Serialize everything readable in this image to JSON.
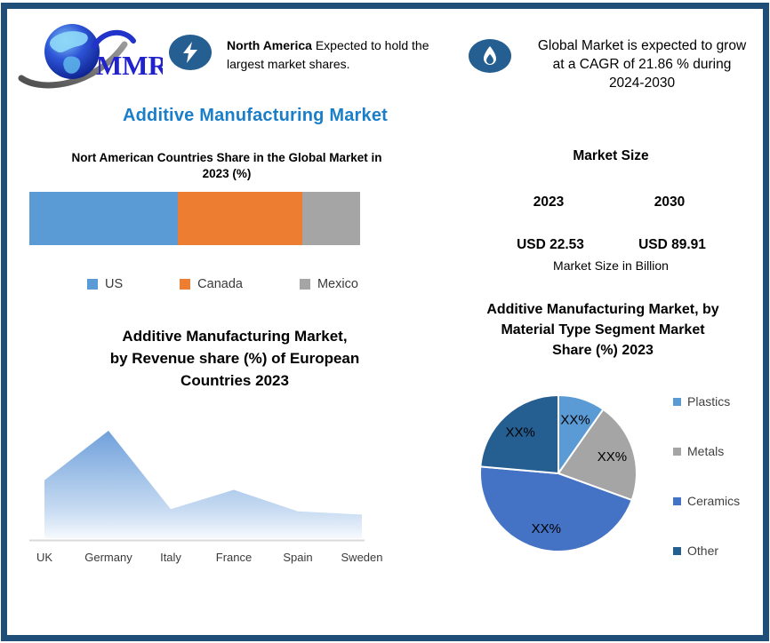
{
  "brand": {
    "logo_text": "MMR",
    "logo_icon": "globe-icon"
  },
  "colors": {
    "frame_border": "#1F4E79",
    "title_blue": "#1B7EC8",
    "badge_blue": "#255E91",
    "us_blue": "#5B9BD5",
    "canada_orange": "#ED7D31",
    "mexico_gray": "#A5A5A5",
    "ceramics_blue": "#4472C4",
    "other_dark_blue": "#255E91",
    "area_fill_top": "#6FA0DB"
  },
  "header": {
    "highlights": [
      {
        "icon": "lightning-icon",
        "text_bold": "North America",
        "text_rest": " Expected to hold the largest market shares."
      },
      {
        "icon": "flame-icon",
        "text": "Global Market is expected to grow at a CAGR of 21.86 % during 2024-2030"
      }
    ]
  },
  "page_title": "Additive Manufacturing Market",
  "market_size": {
    "title": "Market Size",
    "columns": [
      {
        "year": "2023",
        "value": "USD 22.53"
      },
      {
        "year": "2030",
        "value": "USD 89.91"
      }
    ],
    "unit_note": "Market Size in Billion"
  },
  "chart_data": [
    {
      "id": "north_america_share",
      "type": "bar",
      "variant": "horizontal-stacked",
      "title": "Nort American Countries Share in the Global Market in 2023 (%)",
      "title_lines": [
        "Nort American Countries Share in the Global Market in",
        "2023 (%)"
      ],
      "series": [
        {
          "name": "US",
          "value": 45,
          "color": "#5B9BD5"
        },
        {
          "name": "Canada",
          "value": 37.5,
          "color": "#ED7D31"
        },
        {
          "name": "Mexico",
          "value": 17.5,
          "color": "#A5A5A5"
        }
      ],
      "legend_position": "bottom",
      "note": "segment sizes estimated from bar widths; no data labels shown"
    },
    {
      "id": "european_revenue_share",
      "type": "area",
      "title": "Additive Manufacturing Market, by Revenue share (%) of European Countries 2023",
      "title_lines": [
        "Additive Manufacturing Market,",
        "by Revenue share (%) of European",
        "Countries 2023"
      ],
      "categories": [
        "UK",
        "Germany",
        "Italy",
        "France",
        "Spain",
        "Sweden"
      ],
      "values": [
        54,
        100,
        27,
        45,
        25,
        22
      ],
      "ylim": [
        0,
        100
      ],
      "grid": false,
      "note": "no y-axis shown; values are relative heights with Germany = 100"
    },
    {
      "id": "material_type_share",
      "type": "pie",
      "title": "Additive Manufacturing Market, by Material Type Segment Market Share (%) 2023",
      "title_lines": [
        "Additive Manufacturing Market, by",
        "Material Type Segment Market",
        "Share (%) 2023"
      ],
      "slices": [
        {
          "name": "Plastics",
          "label": "XX%",
          "share_deg": 35,
          "approx_percent": 10,
          "color": "#5B9BD5"
        },
        {
          "name": "Metals",
          "label": "XX%",
          "share_deg": 75,
          "approx_percent": 21,
          "color": "#A5A5A5"
        },
        {
          "name": "Ceramics",
          "label": "XX%",
          "share_deg": 165,
          "approx_percent": 46,
          "color": "#4472C4"
        },
        {
          "name": "Other",
          "label": "XX%",
          "share_deg": 85,
          "approx_percent": 23,
          "color": "#255E91"
        }
      ],
      "legend_position": "right",
      "note": "slice values censored as XX% in source; angles estimated"
    }
  ]
}
